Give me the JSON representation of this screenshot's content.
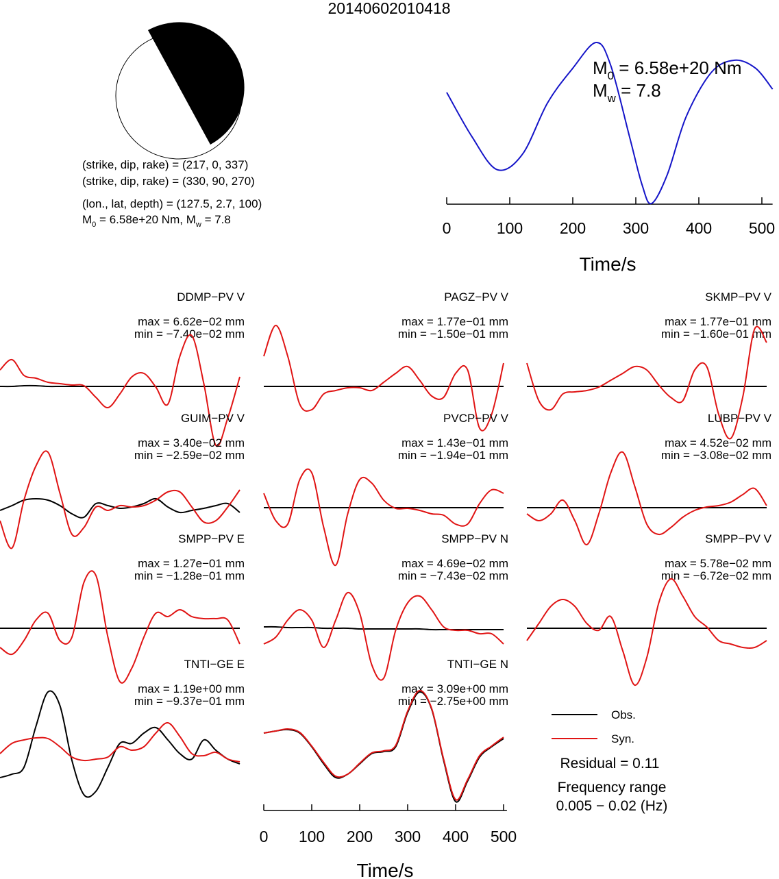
{
  "title": "20140602010418",
  "source_info": {
    "mechanism_1": "(strike, dip, rake) = (217, 0, 337)",
    "mechanism_2": "(strike, dip, rake) = (330, 90, 270)",
    "location": "(lon., lat, depth) = (127.5, 2.7, 100)",
    "moment_line": [
      "M",
      "0",
      " = 6.58e+20 Nm, M",
      "w",
      " = 7.8"
    ]
  },
  "chart_data": [
    {
      "type": "line",
      "moment_text": [
        "M",
        "0",
        " = 6.58e+20 Nm"
      ],
      "mw_text": [
        "M",
        "w",
        " = 7.8"
      ],
      "x": [
        0,
        40,
        80,
        120,
        160,
        200,
        237,
        260,
        290,
        310,
        325,
        350,
        380,
        420,
        457,
        490,
        517
      ],
      "series": [
        {
          "color": "#1414c8",
          "values": [
            0.38,
            -0.17,
            -0.58,
            -0.39,
            0.25,
            0.68,
            1.0,
            0.72,
            -0.17,
            -0.77,
            -1.0,
            -0.64,
            0.08,
            0.63,
            0.78,
            0.68,
            0.42
          ]
        }
      ],
      "xlim": [
        0,
        517
      ],
      "ylim": [
        -1,
        1
      ],
      "xticks": [
        0,
        100,
        200,
        300,
        400,
        500
      ],
      "xlabel": "Time/s"
    },
    {
      "type": "waveforms",
      "x": [
        0,
        25,
        50,
        75,
        100,
        125,
        150,
        175,
        200,
        225,
        250,
        275,
        300,
        325,
        350,
        375,
        400,
        425,
        450,
        475,
        500
      ],
      "xlim": [
        0,
        507
      ],
      "ylim": [
        -100,
        100
      ],
      "xticks": [
        0,
        100,
        200,
        300,
        400,
        500
      ],
      "xlabel": "Time/s",
      "legend": [
        {
          "name": "Obs.",
          "color": "#000000"
        },
        {
          "name": "Syn.",
          "color": "#e01414"
        }
      ],
      "residual_text": "Residual = 0.11",
      "frequency_text": [
        "Frequency range",
        "0.005 − 0.02 (Hz)"
      ],
      "panels": [
        {
          "station": "DDMP−PV V",
          "max_label": "max = 6.62e−02 mm",
          "min_label": "min = −7.40e−02 mm",
          "series": [
            {
              "values": [
                0,
                0,
                1,
                1,
                0,
                0,
                0,
                0,
                0,
                0,
                0,
                0,
                0,
                0,
                0,
                0,
                0,
                0,
                0,
                0,
                0
              ]
            },
            {
              "values": [
                24,
                39,
                16,
                12,
                6,
                4,
                2,
                1,
                -16,
                -31,
                -11,
                14,
                19,
                -1,
                -26,
                44,
                74,
                4,
                -86,
                -46,
                14
              ]
            }
          ]
        },
        {
          "station": "PAGZ−PV V",
          "max_label": "max = 1.77e−01 mm",
          "min_label": "min = −1.50e−01 mm",
          "series": [
            {
              "values": [
                0,
                0,
                0,
                0,
                0,
                0,
                0,
                0,
                0,
                0,
                0,
                0,
                0,
                0,
                0,
                0,
                0,
                0,
                0,
                0,
                0
              ]
            },
            {
              "values": [
                44,
                89,
                44,
                -26,
                -34,
                -11,
                -6,
                -2,
                -2,
                -6,
                6,
                19,
                29,
                9,
                -14,
                -16,
                19,
                24,
                -61,
                -41,
                34
              ]
            }
          ]
        },
        {
          "station": "SKMP−PV V",
          "max_label": "max = 1.77e−01 mm",
          "min_label": "min = −1.60e−01 mm",
          "series": [
            {
              "values": [
                0,
                0,
                0,
                0,
                0,
                0,
                0,
                0,
                0,
                0,
                0,
                0,
                0,
                0,
                0,
                0,
                0,
                0,
                0,
                0,
                0
              ]
            },
            {
              "values": [
                34,
                -21,
                -34,
                -11,
                -8,
                -6,
                -1,
                9,
                19,
                29,
                24,
                2,
                -16,
                -21,
                24,
                29,
                -41,
                -76,
                -16,
                84,
                64
              ]
            }
          ]
        },
        {
          "station": "GUIM−PV V",
          "max_label": "max = 3.40e−02 mm",
          "min_label": "min = −2.59e−02 mm",
          "series": [
            {
              "values": [
                -4,
                3,
                11,
                13,
                11,
                3,
                -9,
                -14,
                6,
                3,
                -1,
                1,
                6,
                13,
                1,
                -7,
                -4,
                -1,
                3,
                6,
                -7
              ]
            },
            {
              "values": [
                -19,
                -59,
                11,
                61,
                81,
                21,
                -39,
                -29,
                1,
                -4,
                3,
                1,
                3,
                11,
                23,
                23,
                1,
                -21,
                -19,
                1,
                26
              ]
            }
          ]
        },
        {
          "station": "PVCP−PV V",
          "max_label": "max = 1.43e−01 mm",
          "min_label": "min = −1.94e−01 mm",
          "series": [
            {
              "values": [
                0,
                0,
                0,
                0,
                0,
                0,
                0,
                0,
                0,
                0,
                0,
                0,
                0,
                0,
                0,
                0,
                0,
                0,
                0,
                0,
                0
              ]
            },
            {
              "values": [
                21,
                -19,
                -24,
                41,
                51,
                -29,
                -84,
                -9,
                41,
                36,
                11,
                -1,
                -1,
                -4,
                -9,
                -11,
                -24,
                -24,
                6,
                26,
                21
              ]
            }
          ]
        },
        {
          "station": "LUBP−PV V",
          "max_label": "max = 4.52e−02 mm",
          "min_label": "min = −3.08e−02 mm",
          "series": [
            {
              "values": [
                0,
                0,
                0,
                0,
                0,
                0,
                0,
                0,
                0,
                0,
                0,
                0,
                0,
                0,
                0,
                0,
                0,
                0,
                0,
                0,
                0
              ]
            },
            {
              "values": [
                -9,
                -19,
                -9,
                11,
                -19,
                -54,
                -9,
                51,
                81,
                31,
                -24,
                -39,
                -29,
                -14,
                -4,
                1,
                3,
                8,
                19,
                28,
                3
              ]
            }
          ]
        },
        {
          "station": "SMPP−PV E",
          "max_label": "max = 1.27e−01 mm",
          "min_label": "min = −1.28e−01 mm",
          "series": [
            {
              "values": [
                0,
                0,
                0,
                0,
                0,
                0,
                0,
                0,
                0,
                0,
                0,
                0,
                0,
                0,
                0,
                0,
                0,
                0,
                0,
                0,
                0
              ]
            },
            {
              "values": [
                -28,
                -38,
                -18,
                12,
                22,
                -18,
                -13,
                67,
                77,
                -13,
                -78,
                -58,
                -13,
                22,
                17,
                27,
                17,
                14,
                14,
                12,
                -23
              ]
            }
          ]
        },
        {
          "station": "SMPP−PV N",
          "max_label": "max = 4.69e−02 mm",
          "min_label": "min = −7.43e−02 mm",
          "series": [
            {
              "values": [
                2,
                2,
                1,
                1,
                1,
                0,
                0,
                0,
                -1,
                -1,
                -1,
                -1,
                -1,
                -1,
                -2,
                -2,
                -2,
                -2,
                -2,
                -2,
                -2
              ]
            },
            {
              "values": [
                -23,
                -13,
                12,
                27,
                12,
                -28,
                12,
                52,
                22,
                -53,
                -73,
                -3,
                37,
                47,
                27,
                2,
                -3,
                -3,
                -8,
                -8,
                -23
              ]
            }
          ]
        },
        {
          "station": "SMPP−PV V",
          "max_label": "max = 5.78e−02 mm",
          "min_label": "min = −6.72e−02 mm",
          "series": [
            {
              "values": [
                0,
                0,
                0,
                0,
                0,
                0,
                0,
                0,
                0,
                0,
                0,
                0,
                0,
                0,
                0,
                0,
                0,
                0,
                0,
                0,
                0
              ]
            },
            {
              "values": [
                -18,
                7,
                32,
                42,
                32,
                7,
                -3,
                17,
                -33,
                -83,
                -43,
                37,
                72,
                47,
                17,
                2,
                -18,
                -23,
                -28,
                -28,
                -18
              ]
            }
          ]
        },
        {
          "station": "TNTI−GE E",
          "max_label": "max = 1.19e+00 mm",
          "min_label": "min = −9.37e−01 mm",
          "series": [
            {
              "values": [
                -35,
                -30,
                -20,
                40,
                90,
                70,
                -10,
                -60,
                -55,
                -20,
                15,
                15,
                30,
                38,
                20,
                0,
                -8,
                20,
                5,
                -8,
                -15
              ]
            },
            {
              "values": [
                0,
                15,
                20,
                23,
                22,
                10,
                -5,
                -10,
                -8,
                -5,
                10,
                5,
                10,
                30,
                45,
                25,
                0,
                -3,
                2,
                -8,
                -12
              ]
            }
          ]
        },
        {
          "station": "TNTI−GE N",
          "max_label": "max = 3.09e+00 mm",
          "min_label": "min = −2.75e+00 mm",
          "series": [
            {
              "values": [
                30,
                33,
                35,
                30,
                10,
                -15,
                -35,
                -30,
                -15,
                0,
                3,
                10,
                60,
                90,
                65,
                -10,
                -70,
                -40,
                -5,
                10,
                22
              ]
            },
            {
              "values": [
                30,
                33,
                36,
                31,
                11,
                -13,
                -33,
                -30,
                -14,
                1,
                4,
                12,
                62,
                92,
                66,
                -8,
                -67,
                -38,
                -3,
                11,
                24
              ]
            }
          ]
        }
      ]
    }
  ]
}
